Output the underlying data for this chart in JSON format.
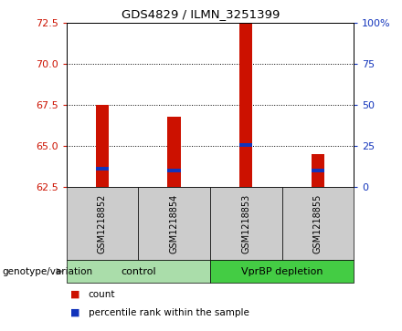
{
  "title": "GDS4829 / ILMN_3251399",
  "samples": [
    "GSM1218852",
    "GSM1218854",
    "GSM1218853",
    "GSM1218855"
  ],
  "bar_values": [
    67.5,
    66.8,
    72.5,
    64.5
  ],
  "bar_base": 62.5,
  "blue_values": [
    63.6,
    63.5,
    65.05,
    63.5
  ],
  "ylim_left": [
    62.5,
    72.5
  ],
  "ylim_right": [
    0,
    100
  ],
  "yticks_left": [
    62.5,
    65.0,
    67.5,
    70.0,
    72.5
  ],
  "yticks_right": [
    0,
    25,
    50,
    75,
    100
  ],
  "ytick_labels_right": [
    "0",
    "25",
    "50",
    "75",
    "100%"
  ],
  "grid_values": [
    65.0,
    67.5,
    70.0
  ],
  "bar_color": "#CC1100",
  "blue_color": "#1133BB",
  "label_count": "count",
  "label_percentile": "percentile rank within the sample",
  "genotype_label": "genotype/variation",
  "control_label": "control",
  "vpr_label": "VprBP depletion",
  "group_box_light": "#AADDAA",
  "group_box_dark": "#44CC44",
  "sample_box_color": "#CCCCCC"
}
